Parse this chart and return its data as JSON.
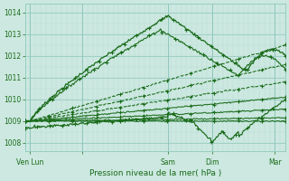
{
  "bg_color": "#cce8e0",
  "grid_minor_color": "#b8ddd6",
  "grid_major_color": "#90c8bc",
  "line_color": "#1a6b1a",
  "xlabel": "Pression niveau de la mer( hPa )",
  "ylim": [
    1007.6,
    1014.4
  ],
  "yticks": [
    1008,
    1009,
    1010,
    1011,
    1012,
    1013,
    1014
  ],
  "xmax": 100,
  "xtick_positions": [
    2,
    22,
    55,
    72,
    96
  ],
  "xtick_labels": [
    "Ven Lun",
    "",
    "Sam",
    "Dim",
    "Mar"
  ],
  "major_vlines": [
    2,
    22,
    55,
    72,
    96
  ],
  "origin_x": 2,
  "origin_y": 1009.0
}
